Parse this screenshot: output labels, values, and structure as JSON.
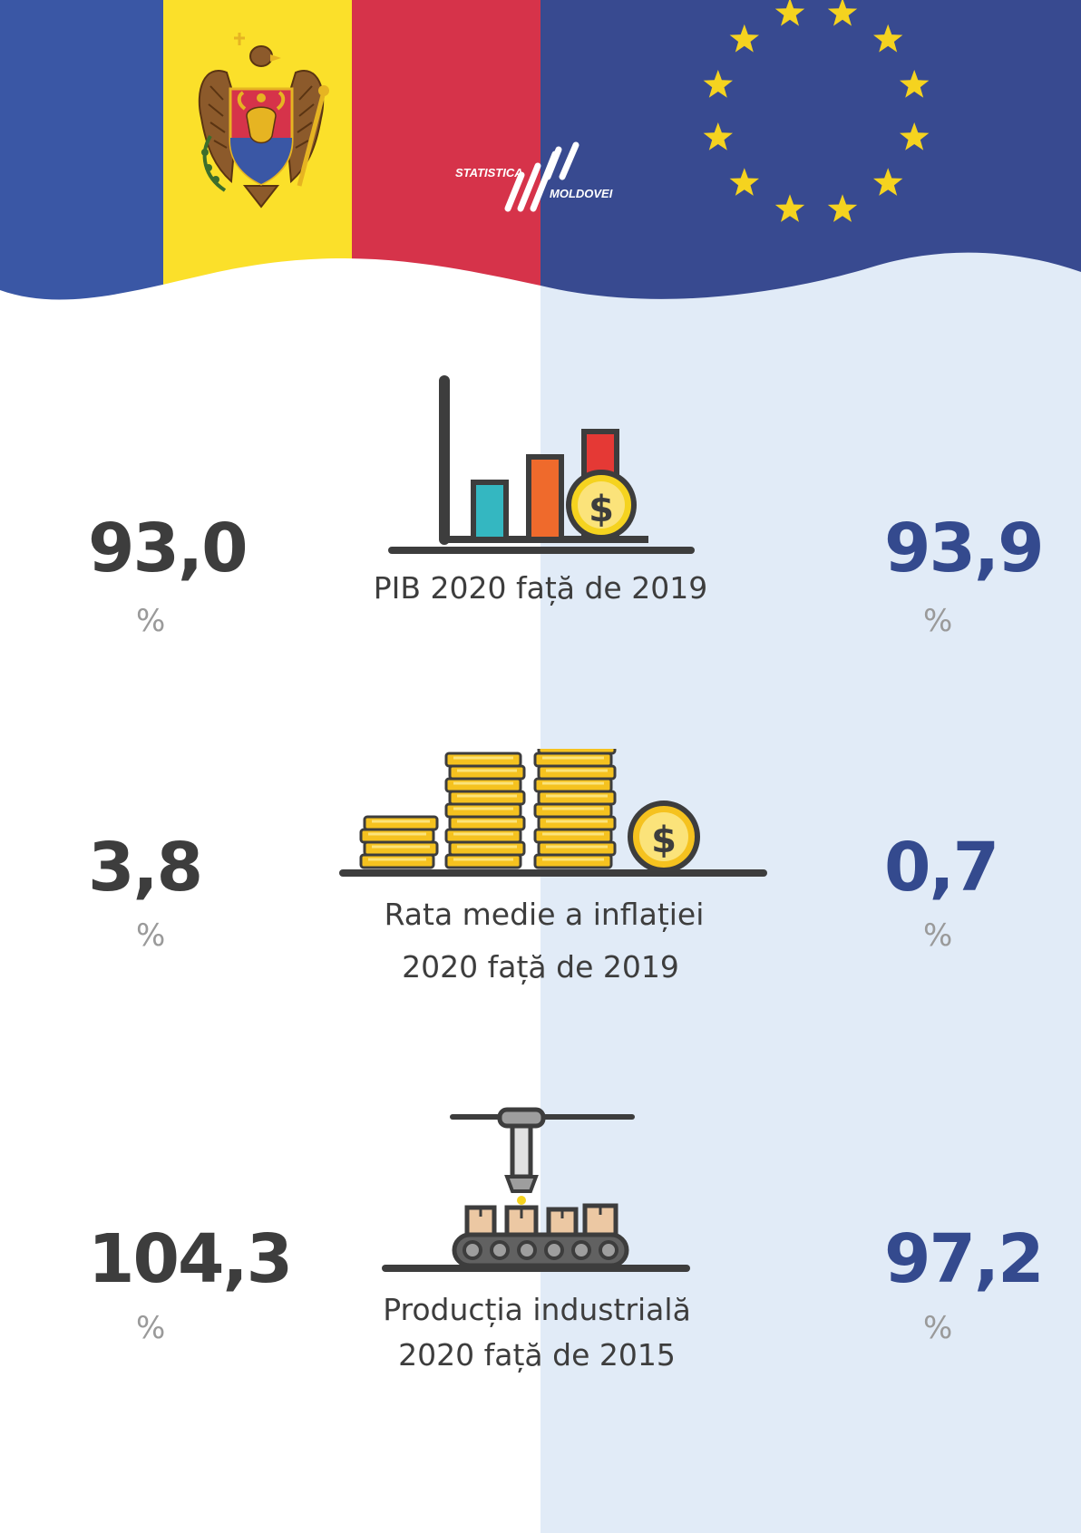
{
  "logo": {
    "line1": "STATISTICA",
    "line2": "MOLDOVEI"
  },
  "colors": {
    "moldova_blue": "#3a57a5",
    "moldova_yellow": "#fbe02a",
    "moldova_red": "#d6334a",
    "eu_blue": "#384a90",
    "eu_star": "#f5d31f",
    "value_left": "#3d3d3d",
    "value_right": "#344a8e",
    "right_panel_bg": "#e1ebf7"
  },
  "indicators": [
    {
      "label_lines": [
        "PIB 2020 față de 2019"
      ],
      "moldova_value": "93,0",
      "eu_value": "93,9",
      "unit": "%",
      "icon": "bar-chart-coin-icon"
    },
    {
      "label_lines": [
        "Rata medie a inflației",
        "2020 față de 2019"
      ],
      "moldova_value": "3,8",
      "eu_value": "0,7",
      "unit": "%",
      "icon": "coin-stacks-icon"
    },
    {
      "label_lines": [
        "Producția industrială",
        "2020 față de 2015"
      ],
      "moldova_value": "104,3",
      "eu_value": "97,2",
      "unit": "%",
      "icon": "conveyor-belt-icon"
    }
  ]
}
